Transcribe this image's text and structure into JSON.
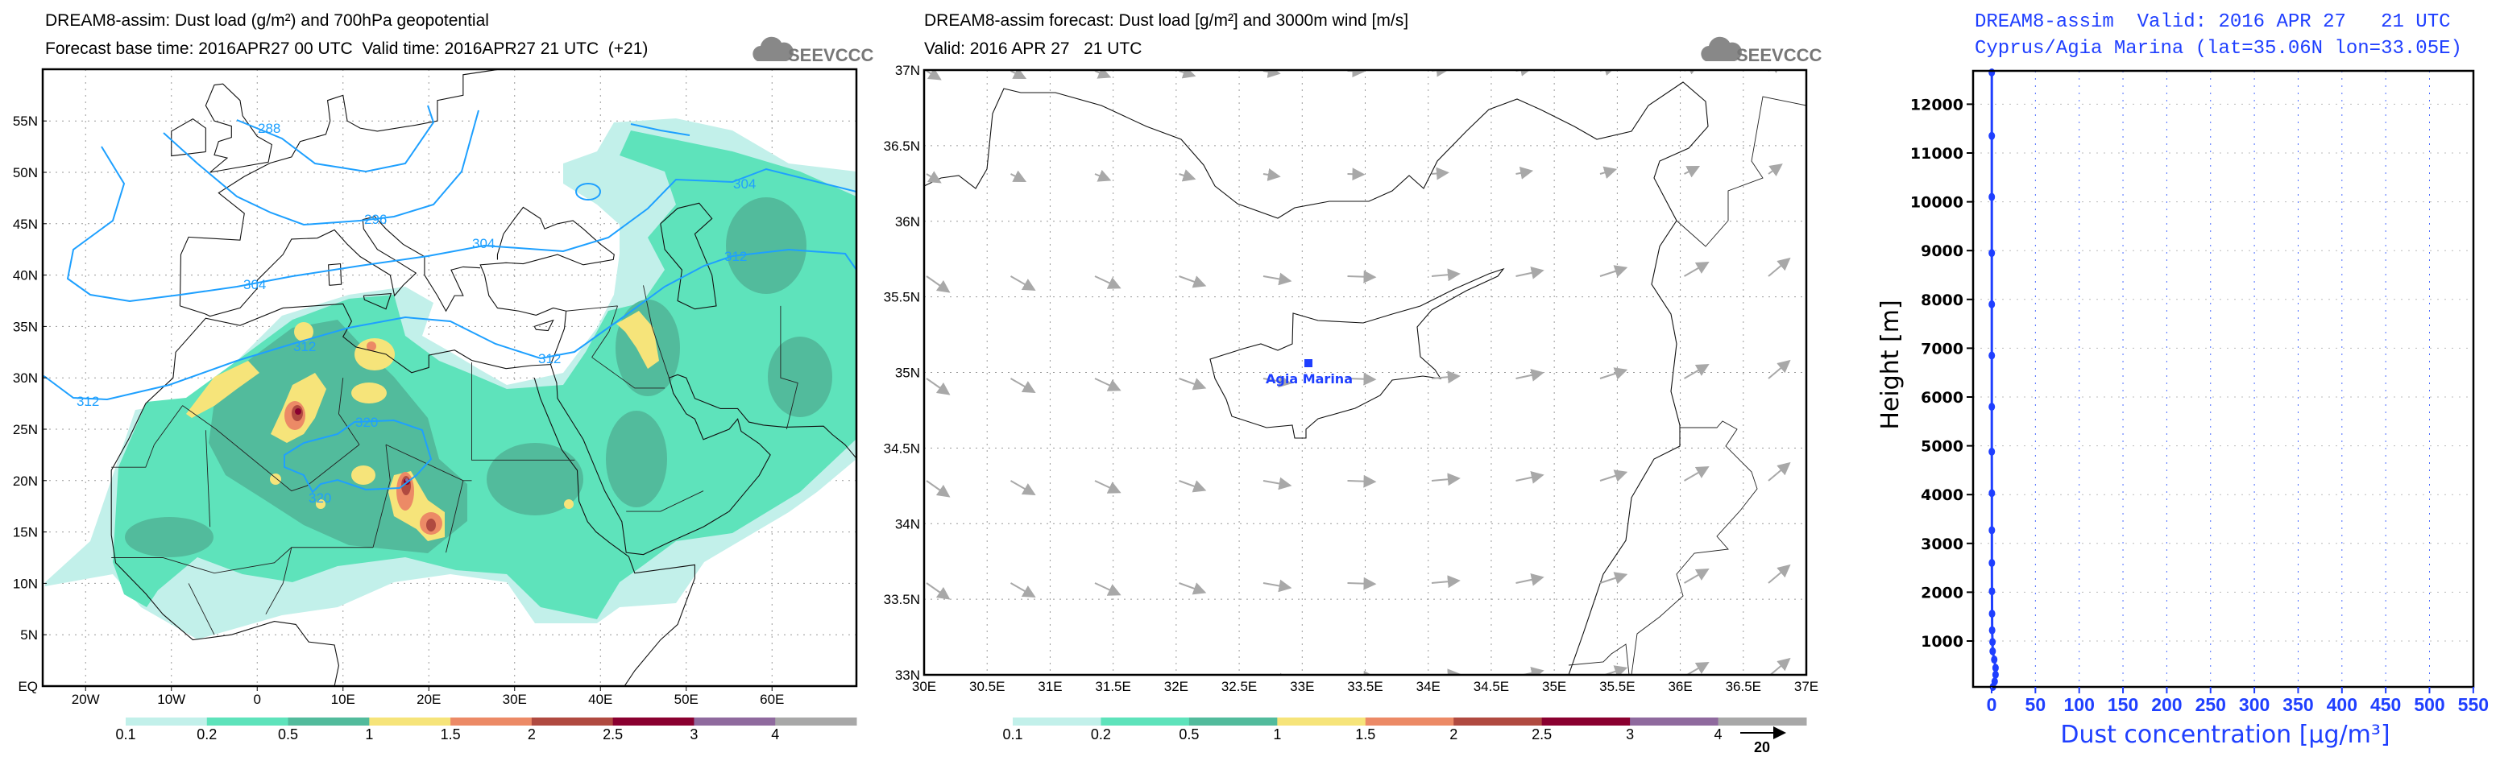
{
  "panel1": {
    "title_line1": "DREAM8-assim: Dust load (g/m²) and 700hPa geopotential",
    "title_line2": "Forecast base time: 2016APR27 00 UTC  Valid time: 2016APR27 21 UTC  (+21)",
    "logo_text": "SEEVCCC",
    "lat_labels": [
      "EQ",
      "5N",
      "10N",
      "15N",
      "20N",
      "25N",
      "30N",
      "35N",
      "40N",
      "45N",
      "50N",
      "55N"
    ],
    "lon_labels": [
      "20W",
      "10W",
      "0",
      "10E",
      "20E",
      "30E",
      "40E",
      "50E",
      "60E"
    ],
    "contour_labels": [
      "288",
      "296",
      "304",
      "304",
      "304",
      "312",
      "312",
      "312",
      "312",
      "320",
      "320"
    ],
    "contour_color": "#1ea0ff"
  },
  "panel2": {
    "title_line1": "DREAM8-assim forecast: Dust load [g/m²] and 3000m wind [m/s]",
    "title_line2": "Valid: 2016 APR 27   21 UTC",
    "logo_text": "SEEVCCC",
    "station_label": "Agia Marina",
    "lat_labels": [
      "33N",
      "33.5N",
      "34N",
      "34.5N",
      "35N",
      "35.5N",
      "36N",
      "36.5N",
      "37N"
    ],
    "lon_labels": [
      "30E",
      "30.5E",
      "31E",
      "31.5E",
      "32E",
      "32.5E",
      "33E",
      "33.5E",
      "34E",
      "34.5E",
      "35E",
      "35.5E",
      "36E",
      "36.5E",
      "37E"
    ],
    "wind_ref_label": "20",
    "wind_color": "#a8a8a8",
    "station_color": "#1f3fff"
  },
  "colorbar": {
    "labels": [
      "0.1",
      "0.2",
      "0.5",
      "1",
      "1.5",
      "2",
      "2.5",
      "3",
      "4"
    ],
    "colors": [
      "#c2f0ea",
      "#5ee3bb",
      "#52bb9c",
      "#f6e47a",
      "#ec8a66",
      "#b04a40",
      "#8a0030",
      "#8f6a9e",
      "#a8a8a8"
    ]
  },
  "chart_data": {
    "type": "line",
    "title": "DREAM8-assim  Valid: 2016 APR 27   21 UTC",
    "subtitle": "Cyprus/Agia Marina (lat=35.06N lon=33.05E)",
    "xlabel": "Dust concentration [µg/m³]",
    "ylabel": "Height [m]",
    "xlim": [
      -20,
      550
    ],
    "ylim": [
      60,
      12700
    ],
    "xticks": [
      "0",
      "50",
      "100",
      "150",
      "200",
      "250",
      "300",
      "350",
      "400",
      "450",
      "500",
      "550"
    ],
    "yticks": [
      "1000",
      "2000",
      "3000",
      "4000",
      "5000",
      "6000",
      "7000",
      "8000",
      "9000",
      "10000",
      "11000",
      "12000"
    ],
    "grid": true,
    "series": [
      {
        "name": "Dust concentration",
        "color": "#1f3fff",
        "heights": [
          12650,
          11350,
          10100,
          8950,
          7900,
          6850,
          5800,
          4880,
          4030,
          3270,
          2600,
          2020,
          1560,
          1220,
          980,
          790,
          620,
          450,
          310,
          170,
          60
        ],
        "values": [
          0.2,
          0.2,
          0.2,
          0.2,
          0.2,
          0.2,
          0.2,
          0.2,
          0.3,
          0.3,
          0.3,
          0.4,
          0.5,
          0.6,
          1,
          1.2,
          3,
          4.5,
          4.5,
          3.5,
          1.5
        ]
      }
    ]
  }
}
